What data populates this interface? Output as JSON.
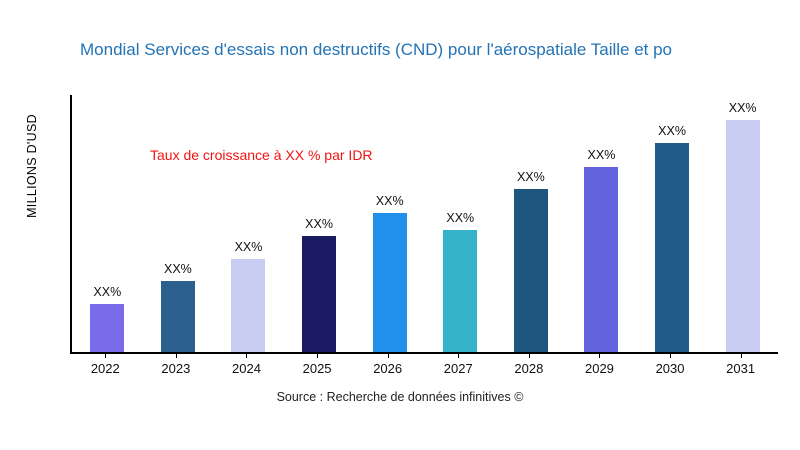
{
  "chart_data": {
    "type": "bar",
    "title": "Mondial Services d'essais non destructifs (CND) pour l'aérospatiale Taille et po",
    "ylabel": "MILLIONS D'USD",
    "xlabel": "",
    "annotation": "Taux de croissance à XX % par IDR",
    "source": "Source : Recherche de données infinitives ©",
    "categories": [
      "2022",
      "2023",
      "2024",
      "2025",
      "2026",
      "2027",
      "2028",
      "2029",
      "2030",
      "2031"
    ],
    "values": [
      48,
      70,
      92,
      115,
      138,
      121,
      162,
      184,
      207,
      230
    ],
    "bar_labels": [
      "XX%",
      "XX%",
      "XX%",
      "XX%",
      "XX%",
      "XX%",
      "XX%",
      "XX%",
      "XX%",
      "XX%"
    ],
    "bar_colors": [
      "#7a6bea",
      "#2b5f8c",
      "#c9ccf2",
      "#1b1b63",
      "#2090ea",
      "#35b3c9",
      "#1f567f",
      "#6363de",
      "#1f5c8c",
      "#c9ccf2"
    ],
    "ylim": [
      0,
      255
    ],
    "grid": false,
    "legend": false,
    "colors": {
      "title": "#2473b5",
      "annotation": "#f01414",
      "axis": "#000000"
    }
  }
}
